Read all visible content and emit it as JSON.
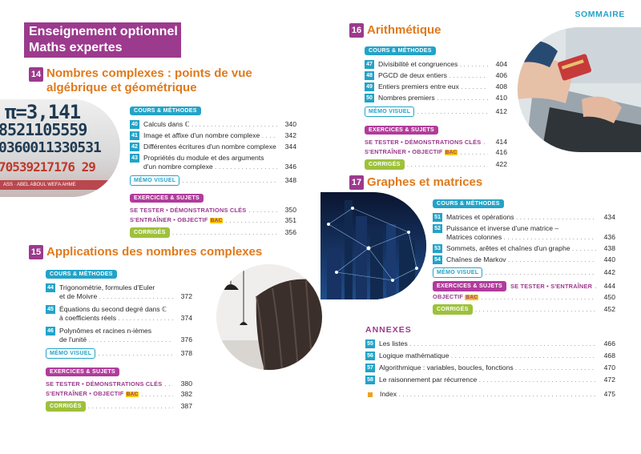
{
  "header": {
    "banner_line1": "Enseignement optionnel",
    "banner_line2": "Maths expertes",
    "sommaire": "SOMMAIRE"
  },
  "labels": {
    "cours": "COURS & MÉTHODES",
    "memo": "MÉMO VISUEL",
    "exercices": "EXERCICES & SUJETS",
    "se_tester": "SE TESTER • DÉMONSTRATIONS CLÉS",
    "sentrainer": "S'ENTRAÎNER • OBJECTIF",
    "bac": "BAC",
    "corriges": "CORRIGÉS",
    "se_tester_short": "SE TESTER • S'ENTRAÎNER",
    "objectif": "OBJECTIF"
  },
  "chapters": {
    "c14": {
      "num": "14",
      "title1": "Nombres complexes : points de vue",
      "title2": "algébrique et géométrique",
      "items": [
        {
          "num": "40",
          "text": "Calculs dans ℂ",
          "page": "340"
        },
        {
          "num": "41",
          "text": "Image et affixe d'un nombre complexe",
          "page": "342"
        },
        {
          "num": "42",
          "text": "Différentes écritures d'un nombre complexe",
          "page": "344"
        },
        {
          "num": "43",
          "text1": "Propriétés du module et des arguments",
          "text2": "d'un nombre complexe",
          "page": "346"
        }
      ],
      "memo_page": "348",
      "se_tester_page": "350",
      "sentrainer_page": "351",
      "corriges_page": "356"
    },
    "c15": {
      "num": "15",
      "title": "Applications des nombres complexes",
      "items": [
        {
          "num": "44",
          "text1": "Trigonométrie, formules d'Euler",
          "text2": "et de Moivre",
          "page": "372"
        },
        {
          "num": "45",
          "text1": "Équations du second degré dans ℂ",
          "text2": "à coefficients réels",
          "page": "374"
        },
        {
          "num": "46",
          "text1": "Polynômes et racines n-ièmes",
          "text2": "de l'unité",
          "page": "376"
        }
      ],
      "memo_page": "378",
      "se_tester_page": "380",
      "sentrainer_page": "382",
      "corriges_page": "387"
    },
    "c16": {
      "num": "16",
      "title": "Arithmétique",
      "items": [
        {
          "num": "47",
          "text": "Divisibilité et congruences",
          "page": "404"
        },
        {
          "num": "48",
          "text": "PGCD de deux entiers",
          "page": "406"
        },
        {
          "num": "49",
          "text": "Entiers premiers entre eux",
          "page": "408"
        },
        {
          "num": "50",
          "text": "Nombres premiers",
          "page": "410"
        }
      ],
      "memo_page": "412",
      "se_tester_page": "414",
      "sentrainer_page": "416",
      "corriges_page": "422"
    },
    "c17": {
      "num": "17",
      "title": "Graphes et matrices",
      "items": [
        {
          "num": "51",
          "text": "Matrices et opérations",
          "page": "434"
        },
        {
          "num": "52",
          "text1": "Puissance et inverse d'une matrice –",
          "text2": "Matrices colonnes",
          "page": "436"
        },
        {
          "num": "53",
          "text": "Sommets, arêtes et chaînes d'un graphe",
          "page": "438"
        },
        {
          "num": "54",
          "text": "Chaînes de Markov",
          "page": "440"
        }
      ],
      "memo_page": "442",
      "se_tester_page": "444",
      "objectif_page": "450",
      "corriges_page": "452"
    }
  },
  "annexes": {
    "title": "ANNEXES",
    "items": [
      {
        "num": "55",
        "text": "Les listes",
        "page": "466"
      },
      {
        "num": "56",
        "text": "Logique mathématique",
        "page": "468"
      },
      {
        "num": "57",
        "text": "Algorithmique : variables, boucles, fonctions",
        "page": "470"
      },
      {
        "num": "58",
        "text": "Le raisonnement par récurrence",
        "page": "472"
      }
    ],
    "index_label": "Index",
    "index_page": "475"
  },
  "photo_numbers": {
    "line1": "π=3,141",
    "line2": "8521105559",
    "line3": "0360011330531",
    "line4": "70539217176 29",
    "line5": "ASS · ABEL ABOUL WEFA AHME"
  },
  "colors": {
    "purple": "#9c3a8d",
    "orange": "#e07a1c",
    "blue": "#23a3c8",
    "green": "#9ec13b"
  }
}
